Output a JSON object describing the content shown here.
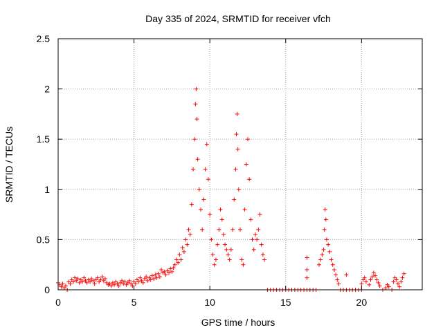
{
  "chart_data": {
    "type": "scatter",
    "title": "Day 335 of 2024, SRMTID for receiver vfch",
    "xlabel": "GPS time / hours",
    "ylabel": "SRMTID / TECUs",
    "xlim": [
      0,
      24
    ],
    "ylim": [
      0,
      2.5
    ],
    "x_ticks": [
      0,
      5,
      10,
      15,
      20
    ],
    "x_tick_labels": [
      "0",
      "5",
      "10",
      "15",
      "20"
    ],
    "y_ticks": [
      0,
      0.5,
      1,
      1.5,
      2,
      2.5
    ],
    "y_tick_labels": [
      "0",
      "0.5",
      "1",
      "1.5",
      "2",
      "2.5"
    ],
    "grid": true,
    "marker": "+",
    "series": [
      {
        "name": "SRMTID",
        "color": "#ff0000",
        "points": [
          [
            0.0,
            0.07
          ],
          [
            0.1,
            0.05
          ],
          [
            0.2,
            0.03
          ],
          [
            0.3,
            0.06
          ],
          [
            0.4,
            0.02
          ],
          [
            0.5,
            0.04
          ],
          [
            0.6,
            0.0
          ],
          [
            0.7,
            0.08
          ],
          [
            0.8,
            0.06
          ],
          [
            0.9,
            0.1
          ],
          [
            1.0,
            0.08
          ],
          [
            1.1,
            0.12
          ],
          [
            1.2,
            0.09
          ],
          [
            1.3,
            0.11
          ],
          [
            1.4,
            0.07
          ],
          [
            1.5,
            0.1
          ],
          [
            1.6,
            0.08
          ],
          [
            1.7,
            0.12
          ],
          [
            1.8,
            0.09
          ],
          [
            1.9,
            0.07
          ],
          [
            2.0,
            0.1
          ],
          [
            2.1,
            0.08
          ],
          [
            2.2,
            0.11
          ],
          [
            2.3,
            0.09
          ],
          [
            2.4,
            0.06
          ],
          [
            2.5,
            0.1
          ],
          [
            2.6,
            0.12
          ],
          [
            2.7,
            0.08
          ],
          [
            2.8,
            0.1
          ],
          [
            2.9,
            0.13
          ],
          [
            3.0,
            0.09
          ],
          [
            3.1,
            0.11
          ],
          [
            3.2,
            0.07
          ],
          [
            3.3,
            0.05
          ],
          [
            3.4,
            0.06
          ],
          [
            3.5,
            0.04
          ],
          [
            3.6,
            0.07
          ],
          [
            3.7,
            0.05
          ],
          [
            3.8,
            0.08
          ],
          [
            3.9,
            0.06
          ],
          [
            4.0,
            0.04
          ],
          [
            4.1,
            0.07
          ],
          [
            4.2,
            0.09
          ],
          [
            4.3,
            0.06
          ],
          [
            4.4,
            0.08
          ],
          [
            4.5,
            0.05
          ],
          [
            4.6,
            0.07
          ],
          [
            4.7,
            0.09
          ],
          [
            4.8,
            0.06
          ],
          [
            4.9,
            0.04
          ],
          [
            5.0,
            0.08
          ],
          [
            5.1,
            0.06
          ],
          [
            5.2,
            0.1
          ],
          [
            5.3,
            0.08
          ],
          [
            5.4,
            0.12
          ],
          [
            5.5,
            0.09
          ],
          [
            5.6,
            0.07
          ],
          [
            5.7,
            0.11
          ],
          [
            5.8,
            0.13
          ],
          [
            5.9,
            0.09
          ],
          [
            6.0,
            0.12
          ],
          [
            6.1,
            0.1
          ],
          [
            6.2,
            0.14
          ],
          [
            6.3,
            0.11
          ],
          [
            6.4,
            0.15
          ],
          [
            6.5,
            0.12
          ],
          [
            6.6,
            0.16
          ],
          [
            6.7,
            0.13
          ],
          [
            6.8,
            0.2
          ],
          [
            6.9,
            0.17
          ],
          [
            7.0,
            0.18
          ],
          [
            7.1,
            0.15
          ],
          [
            7.2,
            0.19
          ],
          [
            7.3,
            0.17
          ],
          [
            7.4,
            0.21
          ],
          [
            7.5,
            0.18
          ],
          [
            7.6,
            0.22
          ],
          [
            7.7,
            0.25
          ],
          [
            7.8,
            0.3
          ],
          [
            7.9,
            0.27
          ],
          [
            8.0,
            0.35
          ],
          [
            8.1,
            0.3
          ],
          [
            8.2,
            0.42
          ],
          [
            8.3,
            0.38
          ],
          [
            8.4,
            0.5
          ],
          [
            8.5,
            0.45
          ],
          [
            8.6,
            0.6
          ],
          [
            8.7,
            0.55
          ],
          [
            8.8,
            0.85
          ],
          [
            8.9,
            1.2
          ],
          [
            9.0,
            1.5
          ],
          [
            9.05,
            1.85
          ],
          [
            9.1,
            2.0
          ],
          [
            9.15,
            1.7
          ],
          [
            9.2,
            1.3
          ],
          [
            9.3,
            1.0
          ],
          [
            9.4,
            0.8
          ],
          [
            9.5,
            0.6
          ],
          [
            9.6,
            0.9
          ],
          [
            9.7,
            1.2
          ],
          [
            9.8,
            1.45
          ],
          [
            9.9,
            1.1
          ],
          [
            10.0,
            0.75
          ],
          [
            10.1,
            0.5
          ],
          [
            10.2,
            0.35
          ],
          [
            10.3,
            0.25
          ],
          [
            10.4,
            0.3
          ],
          [
            10.5,
            0.45
          ],
          [
            10.6,
            0.6
          ],
          [
            10.7,
            0.8
          ],
          [
            10.8,
            0.7
          ],
          [
            10.9,
            0.55
          ],
          [
            11.0,
            0.45
          ],
          [
            11.1,
            0.4
          ],
          [
            11.2,
            0.35
          ],
          [
            11.3,
            0.3
          ],
          [
            11.4,
            0.4
          ],
          [
            11.5,
            0.6
          ],
          [
            11.6,
            0.9
          ],
          [
            11.7,
            1.2
          ],
          [
            11.75,
            1.55
          ],
          [
            11.8,
            1.75
          ],
          [
            11.85,
            1.4
          ],
          [
            11.9,
            1.0
          ],
          [
            12.0,
            0.6
          ],
          [
            12.1,
            0.3
          ],
          [
            12.2,
            0.25
          ],
          [
            12.3,
            0.8
          ],
          [
            12.4,
            1.25
          ],
          [
            12.5,
            1.5
          ],
          [
            12.6,
            1.1
          ],
          [
            12.7,
            0.7
          ],
          [
            12.8,
            0.5
          ],
          [
            12.9,
            0.4
          ],
          [
            13.0,
            0.55
          ],
          [
            13.1,
            0.5
          ],
          [
            13.2,
            0.6
          ],
          [
            13.3,
            0.75
          ],
          [
            13.4,
            0.45
          ],
          [
            13.5,
            0.35
          ],
          [
            13.6,
            0.3
          ],
          [
            13.8,
            0.0
          ],
          [
            14.0,
            0.0
          ],
          [
            14.2,
            0.0
          ],
          [
            14.4,
            0.0
          ],
          [
            14.6,
            0.0
          ],
          [
            14.8,
            0.0
          ],
          [
            15.0,
            0.0
          ],
          [
            15.2,
            0.0
          ],
          [
            15.4,
            0.0
          ],
          [
            15.6,
            0.0
          ],
          [
            15.8,
            0.0
          ],
          [
            16.0,
            0.0
          ],
          [
            16.2,
            0.0
          ],
          [
            16.4,
            0.0
          ],
          [
            16.6,
            0.0
          ],
          [
            16.8,
            0.0
          ],
          [
            17.0,
            0.0
          ],
          [
            16.4,
            0.32
          ],
          [
            16.4,
            0.2
          ],
          [
            16.4,
            0.12
          ],
          [
            17.2,
            0.25
          ],
          [
            17.3,
            0.3
          ],
          [
            17.4,
            0.35
          ],
          [
            17.5,
            0.4
          ],
          [
            17.55,
            0.6
          ],
          [
            17.6,
            0.8
          ],
          [
            17.65,
            0.7
          ],
          [
            17.7,
            0.5
          ],
          [
            17.8,
            0.45
          ],
          [
            17.9,
            0.38
          ],
          [
            18.0,
            0.3
          ],
          [
            18.1,
            0.25
          ],
          [
            18.2,
            0.2
          ],
          [
            18.3,
            0.15
          ],
          [
            18.4,
            0.1
          ],
          [
            18.5,
            0.06
          ],
          [
            18.6,
            0.0
          ],
          [
            18.8,
            0.0
          ],
          [
            19.0,
            0.0
          ],
          [
            19.2,
            0.0
          ],
          [
            19.4,
            0.0
          ],
          [
            19.6,
            0.0
          ],
          [
            19.8,
            0.0
          ],
          [
            20.0,
            0.0
          ],
          [
            19.0,
            0.15
          ],
          [
            20.0,
            0.06
          ],
          [
            20.1,
            0.1
          ],
          [
            20.2,
            0.12
          ],
          [
            20.3,
            0.08
          ],
          [
            20.5,
            0.05
          ],
          [
            20.6,
            0.1
          ],
          [
            20.7,
            0.13
          ],
          [
            20.8,
            0.17
          ],
          [
            20.9,
            0.14
          ],
          [
            21.0,
            0.1
          ],
          [
            21.1,
            0.07
          ],
          [
            21.2,
            0.04
          ],
          [
            21.4,
            0.0
          ],
          [
            21.6,
            0.02
          ],
          [
            21.7,
            0.05
          ],
          [
            21.8,
            0.03
          ],
          [
            22.0,
            0.0
          ],
          [
            22.1,
            0.08
          ],
          [
            22.2,
            0.12
          ],
          [
            22.3,
            0.1
          ],
          [
            22.4,
            0.06
          ],
          [
            22.5,
            0.03
          ],
          [
            22.6,
            0.08
          ],
          [
            22.7,
            0.12
          ],
          [
            22.8,
            0.16
          ]
        ]
      }
    ]
  }
}
